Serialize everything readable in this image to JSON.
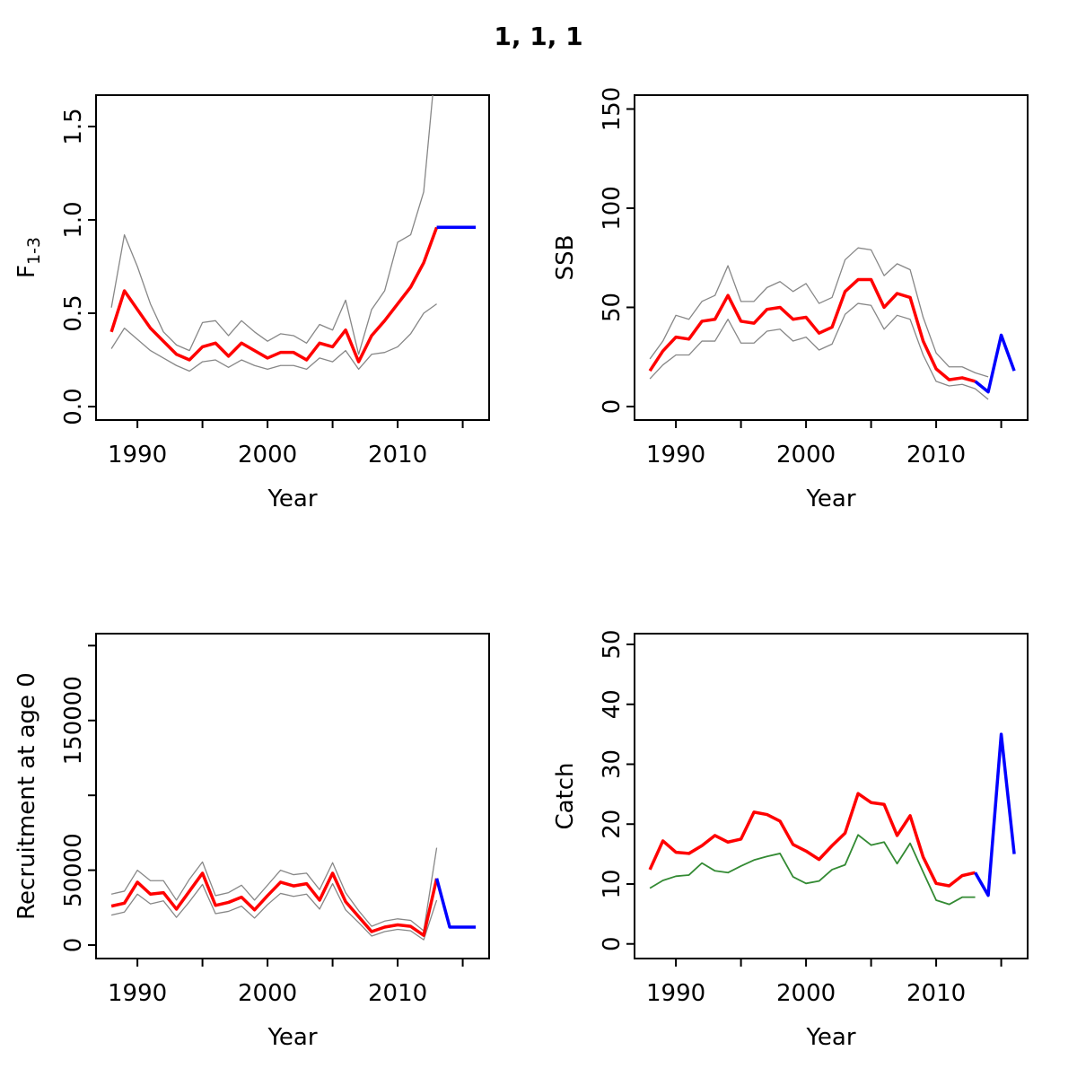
{
  "title": "1, 1, 1",
  "colors": {
    "median": "#FF0000",
    "projection": "#0000FF",
    "confidence_band": "#878787",
    "secondary_line": "#338A33",
    "axis": "#000000",
    "background": "#FFFFFF"
  },
  "chart_data": [
    {
      "id": "f",
      "type": "line",
      "panel": "top-left",
      "ylabel_main": "F",
      "ylabel_sub": "1-3",
      "xlabel": "Year",
      "grid": false,
      "xlim": [
        1986.82,
        2017.03
      ],
      "ylim": [
        -0.072,
        1.668
      ],
      "xticks": [
        {
          "value": 1990,
          "label": "1990"
        },
        {
          "value": 1995,
          "label": ""
        },
        {
          "value": 2000,
          "label": "2000"
        },
        {
          "value": 2005,
          "label": ""
        },
        {
          "value": 2010,
          "label": "2010"
        },
        {
          "value": 2015,
          "label": ""
        }
      ],
      "yticks": [
        {
          "value": 0,
          "label": "0.0"
        },
        {
          "value": 0.5,
          "label": "0.5"
        },
        {
          "value": 1.0,
          "label": "1.0"
        },
        {
          "value": 1.5,
          "label": "1.5"
        }
      ],
      "series": [
        {
          "name": "f-upper-ci",
          "color": "#878787",
          "width": 1.3,
          "x": [
            1988,
            1989,
            1990,
            1991,
            1992,
            1993,
            1994,
            1995,
            1996,
            1997,
            1998,
            1999,
            2000,
            2001,
            2002,
            2003,
            2004,
            2005,
            2006,
            2007,
            2008,
            2009,
            2010,
            2011,
            2012,
            2013
          ],
          "y": [
            0.53,
            0.92,
            0.75,
            0.55,
            0.4,
            0.33,
            0.3,
            0.45,
            0.46,
            0.38,
            0.46,
            0.4,
            0.35,
            0.39,
            0.38,
            0.34,
            0.44,
            0.41,
            0.57,
            0.28,
            0.52,
            0.62,
            0.88,
            0.92,
            1.15,
            1.9
          ]
        },
        {
          "name": "f-lower-ci",
          "color": "#878787",
          "width": 1.3,
          "x": [
            1988,
            1989,
            1990,
            1991,
            1992,
            1993,
            1994,
            1995,
            1996,
            1997,
            1998,
            1999,
            2000,
            2001,
            2002,
            2003,
            2004,
            2005,
            2006,
            2007,
            2008,
            2009,
            2010,
            2011,
            2012,
            2013
          ],
          "y": [
            0.31,
            0.42,
            0.36,
            0.3,
            0.26,
            0.22,
            0.19,
            0.24,
            0.25,
            0.21,
            0.25,
            0.22,
            0.2,
            0.22,
            0.22,
            0.2,
            0.26,
            0.24,
            0.3,
            0.2,
            0.28,
            0.29,
            0.32,
            0.39,
            0.5,
            0.55
          ]
        },
        {
          "name": "f-median",
          "color": "#FF0000",
          "width": 3.5,
          "x": [
            1988,
            1989,
            1990,
            1991,
            1992,
            1993,
            1994,
            1995,
            1996,
            1997,
            1998,
            1999,
            2000,
            2001,
            2002,
            2003,
            2004,
            2005,
            2006,
            2007,
            2008,
            2009,
            2010,
            2011,
            2012,
            2013
          ],
          "y": [
            0.4,
            0.62,
            0.52,
            0.42,
            0.35,
            0.28,
            0.25,
            0.32,
            0.34,
            0.27,
            0.34,
            0.3,
            0.26,
            0.29,
            0.29,
            0.25,
            0.34,
            0.32,
            0.41,
            0.24,
            0.38,
            0.46,
            0.55,
            0.64,
            0.77,
            0.96
          ]
        },
        {
          "name": "f-projection",
          "color": "#0000FF",
          "width": 3.5,
          "x": [
            2013,
            2014,
            2015,
            2016
          ],
          "y": [
            0.96,
            0.96,
            0.96,
            0.96
          ]
        }
      ]
    },
    {
      "id": "ssb",
      "type": "line",
      "panel": "top-right",
      "ylabel_main": "SSB",
      "ylabel_sub": "",
      "xlabel": "Year",
      "grid": false,
      "xlim": [
        1986.82,
        2017.03
      ],
      "ylim": [
        -6.8,
        157
      ],
      "xticks": [
        {
          "value": 1990,
          "label": "1990"
        },
        {
          "value": 1995,
          "label": ""
        },
        {
          "value": 2000,
          "label": "2000"
        },
        {
          "value": 2005,
          "label": ""
        },
        {
          "value": 2010,
          "label": "2010"
        },
        {
          "value": 2015,
          "label": ""
        }
      ],
      "yticks": [
        {
          "value": 0,
          "label": "0"
        },
        {
          "value": 50,
          "label": "50"
        },
        {
          "value": 100,
          "label": "100"
        },
        {
          "value": 150,
          "label": "150"
        }
      ],
      "series": [
        {
          "name": "ssb-upper-ci",
          "color": "#878787",
          "width": 1.3,
          "x": [
            1988,
            1989,
            1990,
            1991,
            1992,
            1993,
            1994,
            1995,
            1996,
            1997,
            1998,
            1999,
            2000,
            2001,
            2002,
            2003,
            2004,
            2005,
            2006,
            2007,
            2008,
            2009,
            2010,
            2011,
            2012,
            2013,
            2014
          ],
          "y": [
            24,
            33,
            46,
            44,
            53,
            56,
            71,
            53,
            53,
            60,
            63,
            58,
            62,
            52,
            55,
            74,
            80,
            79,
            66,
            72,
            69,
            45,
            27,
            20,
            20,
            17,
            15
          ]
        },
        {
          "name": "ssb-lower-ci",
          "color": "#878787",
          "width": 1.3,
          "x": [
            1988,
            1989,
            1990,
            1991,
            1992,
            1993,
            1994,
            1995,
            1996,
            1997,
            1998,
            1999,
            2000,
            2001,
            2002,
            2003,
            2004,
            2005,
            2006,
            2007,
            2008,
            2009,
            2010,
            2011,
            2012,
            2013,
            2014
          ],
          "y": [
            14,
            21,
            26,
            26,
            33,
            33,
            44,
            32,
            32,
            38,
            39,
            33,
            35,
            28.5,
            31.5,
            46.5,
            52,
            51,
            39,
            46,
            44,
            26,
            12.7,
            10.4,
            11.2,
            9,
            3.6
          ]
        },
        {
          "name": "ssb-median",
          "color": "#FF0000",
          "width": 3.5,
          "x": [
            1988,
            1989,
            1990,
            1991,
            1992,
            1993,
            1994,
            1995,
            1996,
            1997,
            1998,
            1999,
            2000,
            2001,
            2002,
            2003,
            2004,
            2005,
            2006,
            2007,
            2008,
            2009,
            2010,
            2011,
            2012,
            2013
          ],
          "y": [
            18,
            28,
            35,
            34,
            43,
            44,
            56,
            43,
            42,
            49,
            50,
            44,
            45,
            37,
            40,
            58,
            64,
            64,
            50,
            57,
            55,
            33,
            19,
            13.5,
            14.5,
            12.7
          ]
        },
        {
          "name": "ssb-projection",
          "color": "#0000FF",
          "width": 3.5,
          "x": [
            2013,
            2014,
            2015,
            2016
          ],
          "y": [
            12.7,
            7.4,
            36,
            18
          ]
        }
      ]
    },
    {
      "id": "rec",
      "type": "line",
      "panel": "bottom-left",
      "ylabel_main": "Recruitment at age 0",
      "ylabel_sub": "",
      "xlabel": "Year",
      "grid": false,
      "xlim": [
        1986.82,
        2017.03
      ],
      "ylim": [
        -9000,
        208000
      ],
      "xticks": [
        {
          "value": 1990,
          "label": "1990"
        },
        {
          "value": 1995,
          "label": ""
        },
        {
          "value": 2000,
          "label": "2000"
        },
        {
          "value": 2005,
          "label": ""
        },
        {
          "value": 2010,
          "label": "2010"
        },
        {
          "value": 2015,
          "label": ""
        }
      ],
      "yticks": [
        {
          "value": 0,
          "label": "0"
        },
        {
          "value": 50000,
          "label": "50000"
        },
        {
          "value": 100000,
          "label": ""
        },
        {
          "value": 150000,
          "label": "150000"
        },
        {
          "value": 200000,
          "label": ""
        }
      ],
      "series": [
        {
          "name": "rec-upper-ci",
          "color": "#878787",
          "width": 1.3,
          "x": [
            1988,
            1989,
            1990,
            1991,
            1992,
            1993,
            1994,
            1995,
            1996,
            1997,
            1998,
            1999,
            2000,
            2001,
            2002,
            2003,
            2004,
            2005,
            2006,
            2007,
            2008,
            2009,
            2010,
            2011,
            2012,
            2013
          ],
          "y": [
            34000,
            36000,
            50000,
            43000,
            43000,
            30000,
            44000,
            55500,
            33000,
            35000,
            40000,
            30000,
            40000,
            50000,
            47000,
            48000,
            37000,
            55000,
            35000,
            23000,
            12500,
            16000,
            17500,
            16500,
            9500,
            65000
          ]
        },
        {
          "name": "rec-lower-ci",
          "color": "#878787",
          "width": 1.3,
          "x": [
            1988,
            1989,
            1990,
            1991,
            1992,
            1993,
            1994,
            1995,
            1996,
            1997,
            1998,
            1999,
            2000,
            2001,
            2002,
            2003,
            2004,
            2005,
            2006,
            2007,
            2008,
            2009,
            2010,
            2011,
            2012,
            2013
          ],
          "y": [
            20000,
            22000,
            34000,
            27500,
            29500,
            18500,
            29000,
            40500,
            21000,
            22500,
            26000,
            18000,
            27000,
            34500,
            32500,
            34000,
            24000,
            41000,
            23500,
            15000,
            6000,
            9000,
            10500,
            9500,
            3500,
            30000
          ]
        },
        {
          "name": "rec-median",
          "color": "#FF0000",
          "width": 3.5,
          "x": [
            1988,
            1989,
            1990,
            1991,
            1992,
            1993,
            1994,
            1995,
            1996,
            1997,
            1998,
            1999,
            2000,
            2001,
            2002,
            2003,
            2004,
            2005,
            2006,
            2007,
            2008,
            2009,
            2010,
            2011,
            2012,
            2013
          ],
          "y": [
            26000,
            28000,
            42000,
            34000,
            35000,
            24000,
            36000,
            48000,
            26500,
            28500,
            32000,
            23500,
            33000,
            42000,
            39500,
            41000,
            30000,
            48000,
            29000,
            19000,
            9000,
            12000,
            13500,
            12500,
            6500,
            44500
          ]
        },
        {
          "name": "rec-projection",
          "color": "#0000FF",
          "width": 3.5,
          "x": [
            2013,
            2014,
            2015,
            2016
          ],
          "y": [
            44500,
            12000,
            12000,
            12000
          ]
        }
      ]
    },
    {
      "id": "catch",
      "type": "line",
      "panel": "bottom-right",
      "ylabel_main": "Catch",
      "ylabel_sub": "",
      "xlabel": "Year",
      "grid": false,
      "xlim": [
        1986.82,
        2017.03
      ],
      "ylim": [
        -2.44,
        51.8
      ],
      "xticks": [
        {
          "value": 1990,
          "label": "1990"
        },
        {
          "value": 1995,
          "label": ""
        },
        {
          "value": 2000,
          "label": "2000"
        },
        {
          "value": 2005,
          "label": ""
        },
        {
          "value": 2010,
          "label": "2010"
        },
        {
          "value": 2015,
          "label": ""
        }
      ],
      "yticks": [
        {
          "value": 0,
          "label": "0"
        },
        {
          "value": 10,
          "label": "10"
        },
        {
          "value": 20,
          "label": "20"
        },
        {
          "value": 30,
          "label": "30"
        },
        {
          "value": 40,
          "label": "40"
        },
        {
          "value": 50,
          "label": "50"
        }
      ],
      "series": [
        {
          "name": "catch-landings",
          "color": "#338A33",
          "width": 1.8,
          "x": [
            1988,
            1989,
            1990,
            1991,
            1992,
            1993,
            1994,
            1995,
            1996,
            1997,
            1998,
            1999,
            2000,
            2001,
            2002,
            2003,
            2004,
            2005,
            2006,
            2007,
            2008,
            2009,
            2010,
            2011,
            2012,
            2013
          ],
          "y": [
            9.3,
            10.6,
            11.3,
            11.5,
            13.5,
            12.2,
            11.9,
            13.0,
            14.0,
            14.6,
            15.1,
            11.2,
            10.1,
            10.5,
            12.4,
            13.2,
            18.2,
            16.5,
            17.0,
            13.4,
            16.8,
            12.0,
            7.3,
            6.6,
            7.8,
            7.8
          ]
        },
        {
          "name": "catch-median",
          "color": "#FF0000",
          "width": 3.5,
          "x": [
            1988,
            1989,
            1990,
            1991,
            1992,
            1993,
            1994,
            1995,
            1996,
            1997,
            1998,
            1999,
            2000,
            2001,
            2002,
            2003,
            2004,
            2005,
            2006,
            2007,
            2008,
            2009,
            2010,
            2011,
            2012,
            2013
          ],
          "y": [
            12.4,
            17.2,
            15.3,
            15.1,
            16.4,
            18.1,
            17.0,
            17.5,
            22.0,
            21.6,
            20.5,
            16.6,
            15.5,
            14.1,
            16.4,
            18.5,
            25.1,
            23.6,
            23.3,
            18.1,
            21.4,
            14.5,
            10.1,
            9.7,
            11.4,
            11.9
          ]
        },
        {
          "name": "catch-projection",
          "color": "#0000FF",
          "width": 3.5,
          "x": [
            2013,
            2014,
            2015,
            2016
          ],
          "y": [
            11.9,
            8.1,
            35.0,
            15.0
          ]
        }
      ]
    }
  ]
}
